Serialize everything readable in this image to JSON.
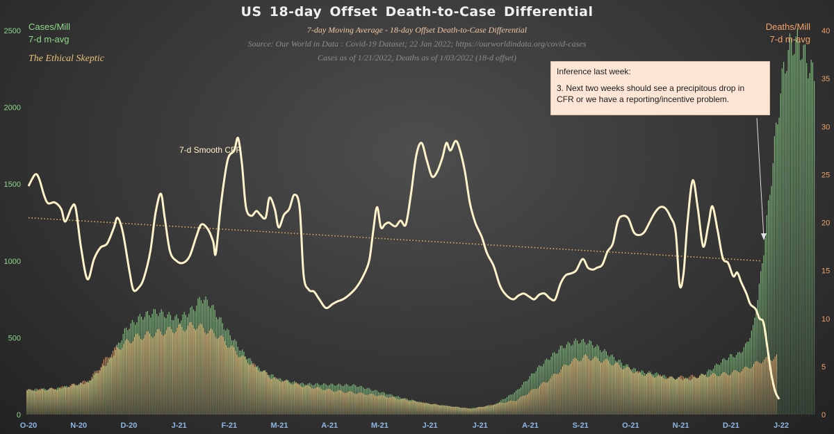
{
  "title": "US 18-day  Offset  Death-to-Case  Differential",
  "subtitle": "7-day Moving Average - 18-day Offset Death-to-Case Differential",
  "source": "Source: Our World in  Data : Covid-19 Dataset; 22  Jan 2022;  https://ourworldindata.org/covid-cases",
  "asof": "Cases as of 1/21/2022,  Deaths as of 1/03/2022  (18-d offset)",
  "left_axis_title": [
    "Cases/Mill",
    "7-d m-avg"
  ],
  "right_axis_title": [
    "Deaths/Mill",
    "7-d m-avg"
  ],
  "brand": "The Ethical Skeptic",
  "annotation": {
    "line1": "Inference last week:",
    "line2": "3.  Next two weeks should see a precipitous drop in CFR or we have a  reporting/incentive problem."
  },
  "colors": {
    "cases": "#8fd98b",
    "deaths": "#f2a36a",
    "cfr": "#fff3c9",
    "trend": "#e9b25c",
    "tick": "#8fb8e8"
  },
  "chart_data": {
    "type": "bar",
    "title": "US 18-day  Offset  Death-to-Case  Differential",
    "x_range": [
      "2020-10-01",
      "2022-01-21"
    ],
    "x_tick_labels": [
      "O-20",
      "N-20",
      "D-20",
      "J-21",
      "F-21",
      "M-21",
      "A-21",
      "M-21",
      "J-21",
      "J-21",
      "A-21",
      "S-21",
      "O-21",
      "N-21",
      "D-21",
      "J-22"
    ],
    "y_left": {
      "label": "Cases/Mill 7-d m-avg",
      "min": 0,
      "max": 2500,
      "ticks": [
        0,
        500,
        1000,
        1500,
        2000,
        2500
      ]
    },
    "y_right": {
      "label": "Deaths/Mill 7-d m-avg",
      "min": 0,
      "max": 40,
      "ticks": [
        0,
        5,
        10,
        15,
        20,
        25,
        30,
        35,
        40
      ]
    },
    "series": [
      {
        "name": "Cases/Mill 7-d m-avg",
        "axis": "left",
        "type": "bar",
        "keypoints": [
          [
            0,
            160
          ],
          [
            20,
            170
          ],
          [
            40,
            210
          ],
          [
            55,
            360
          ],
          [
            65,
            560
          ],
          [
            75,
            640
          ],
          [
            85,
            670
          ],
          [
            100,
            620
          ],
          [
            110,
            700
          ],
          [
            114,
            760
          ],
          [
            120,
            720
          ],
          [
            130,
            560
          ],
          [
            140,
            420
          ],
          [
            150,
            310
          ],
          [
            165,
            230
          ],
          [
            180,
            200
          ],
          [
            200,
            195
          ],
          [
            215,
            190
          ],
          [
            230,
            150
          ],
          [
            245,
            110
          ],
          [
            260,
            75
          ],
          [
            275,
            55
          ],
          [
            290,
            40
          ],
          [
            305,
            60
          ],
          [
            320,
            150
          ],
          [
            335,
            310
          ],
          [
            350,
            440
          ],
          [
            360,
            480
          ],
          [
            368,
            470
          ],
          [
            378,
            410
          ],
          [
            390,
            330
          ],
          [
            400,
            280
          ],
          [
            410,
            270
          ],
          [
            420,
            240
          ],
          [
            435,
            230
          ],
          [
            445,
            275
          ],
          [
            455,
            350
          ],
          [
            460,
            380
          ],
          [
            465,
            390
          ],
          [
            470,
            445
          ],
          [
            475,
            560
          ],
          [
            480,
            900
          ],
          [
            485,
            1350
          ],
          [
            490,
            1850
          ],
          [
            495,
            2250
          ],
          [
            500,
            2420
          ],
          [
            505,
            2420
          ],
          [
            510,
            2300
          ],
          [
            515,
            2200
          ]
        ]
      },
      {
        "name": "Deaths/Mill 7-d m-avg",
        "axis": "right",
        "type": "bar",
        "keypoints": [
          [
            0,
            2.5
          ],
          [
            20,
            2.7
          ],
          [
            40,
            3.5
          ],
          [
            55,
            6.5
          ],
          [
            70,
            8.0
          ],
          [
            85,
            8.5
          ],
          [
            100,
            9.0
          ],
          [
            110,
            9.3
          ],
          [
            125,
            8.2
          ],
          [
            140,
            6.0
          ],
          [
            160,
            3.8
          ],
          [
            180,
            3.0
          ],
          [
            200,
            2.5
          ],
          [
            230,
            2.0
          ],
          [
            260,
            1.2
          ],
          [
            290,
            0.6
          ],
          [
            320,
            1.5
          ],
          [
            340,
            3.5
          ],
          [
            355,
            5.5
          ],
          [
            365,
            6.0
          ],
          [
            380,
            5.5
          ],
          [
            400,
            4.3
          ],
          [
            420,
            3.8
          ],
          [
            440,
            4.0
          ],
          [
            460,
            4.3
          ],
          [
            470,
            4.8
          ],
          [
            480,
            5.6
          ],
          [
            490,
            6.0
          ]
        ]
      },
      {
        "name": "7-d Smooth CFR",
        "axis": "right",
        "type": "line",
        "label": "7-d Smooth CFR",
        "keypoints": [
          [
            0,
            23.8
          ],
          [
            5,
            25.0
          ],
          [
            8,
            24.6
          ],
          [
            12,
            22.8
          ],
          [
            15,
            22.0
          ],
          [
            20,
            22.1
          ],
          [
            25,
            21.4
          ],
          [
            28,
            20.1
          ],
          [
            33,
            21.6
          ],
          [
            36,
            21.5
          ],
          [
            40,
            17.5
          ],
          [
            45,
            14.1
          ],
          [
            50,
            16.2
          ],
          [
            55,
            17.4
          ],
          [
            60,
            17.8
          ],
          [
            65,
            19.4
          ],
          [
            68,
            20.5
          ],
          [
            72,
            19.0
          ],
          [
            77,
            15.0
          ],
          [
            80,
            13.0
          ],
          [
            84,
            13.2
          ],
          [
            88,
            14.2
          ],
          [
            93,
            17.0
          ],
          [
            97,
            21.0
          ],
          [
            101,
            23.0
          ],
          [
            104,
            20.5
          ],
          [
            108,
            17.0
          ],
          [
            113,
            16.0
          ],
          [
            118,
            15.8
          ],
          [
            123,
            16.5
          ],
          [
            128,
            18.5
          ],
          [
            132,
            19.8
          ],
          [
            137,
            19.3
          ],
          [
            141,
            18.0
          ],
          [
            143,
            16.8
          ],
          [
            147,
            22.0
          ],
          [
            152,
            26.5
          ],
          [
            157,
            27.5
          ],
          [
            160,
            28.8
          ],
          [
            163,
            26.0
          ],
          [
            166,
            21.6
          ],
          [
            170,
            20.7
          ],
          [
            174,
            21.2
          ],
          [
            177,
            20.8
          ],
          [
            181,
            20.5
          ],
          [
            184,
            22.6
          ],
          [
            188,
            21.4
          ],
          [
            191,
            19.5
          ],
          [
            195,
            20.8
          ],
          [
            199,
            21.4
          ],
          [
            203,
            22.9
          ],
          [
            207,
            21.5
          ],
          [
            210,
            14.5
          ],
          [
            214,
            13.0
          ],
          [
            218,
            12.8
          ],
          [
            222,
            12.0
          ],
          [
            227,
            11.1
          ],
          [
            232,
            11.5
          ],
          [
            236,
            11.8
          ],
          [
            240,
            12.0
          ],
          [
            245,
            12.5
          ],
          [
            250,
            13.2
          ],
          [
            255,
            14.3
          ],
          [
            260,
            16.0
          ],
          [
            263,
            19.0
          ],
          [
            266,
            21.6
          ],
          [
            269,
            19.5
          ],
          [
            272,
            19.8
          ],
          [
            275,
            20.0
          ],
          [
            280,
            19.6
          ],
          [
            284,
            20.2
          ],
          [
            288,
            19.8
          ],
          [
            292,
            23.0
          ],
          [
            296,
            27.0
          ],
          [
            300,
            28.3
          ],
          [
            304,
            26.5
          ],
          [
            308,
            24.8
          ],
          [
            312,
            25.3
          ],
          [
            316,
            26.8
          ],
          [
            319,
            28.3
          ],
          [
            322,
            27.5
          ],
          [
            326,
            28.5
          ],
          [
            329,
            27.7
          ],
          [
            333,
            25.4
          ],
          [
            337,
            22.0
          ],
          [
            341,
            20.0
          ],
          [
            346,
            18.5
          ],
          [
            350,
            16.8
          ],
          [
            355,
            15.5
          ],
          [
            360,
            13.4
          ],
          [
            365,
            12.4
          ],
          [
            370,
            12.0
          ],
          [
            374,
            12.4
          ],
          [
            378,
            12.6
          ],
          [
            382,
            12.3
          ],
          [
            386,
            12.0
          ],
          [
            390,
            12.5
          ],
          [
            394,
            12.6
          ],
          [
            398,
            12.1
          ],
          [
            402,
            12.0
          ],
          [
            406,
            13.6
          ],
          [
            410,
            14.5
          ],
          [
            414,
            14.7
          ],
          [
            418,
            15.0
          ],
          [
            423,
            16.2
          ],
          [
            427,
            15.3
          ],
          [
            431,
            15.1
          ],
          [
            434,
            15.3
          ],
          [
            438,
            15.6
          ],
          [
            442,
            17.0
          ],
          [
            446,
            17.8
          ],
          [
            450,
            20.2
          ],
          [
            454,
            20.7
          ],
          [
            458,
            20.4
          ],
          [
            462,
            19.0
          ],
          [
            466,
            18.7
          ],
          [
            470,
            19.0
          ],
          [
            474,
            20.0
          ],
          [
            478,
            21.0
          ],
          [
            482,
            21.6
          ],
          [
            486,
            21.5
          ],
          [
            490,
            20.6
          ],
          [
            494,
            19.0
          ],
          [
            497,
            13.5
          ],
          [
            500,
            14.7
          ],
          [
            503,
            20.0
          ],
          [
            507,
            24.4
          ],
          [
            511,
            21.4
          ],
          [
            515,
            17.5
          ],
          [
            519,
            19.8
          ],
          [
            522,
            21.7
          ],
          [
            526,
            19.2
          ],
          [
            530,
            16.3
          ],
          [
            534,
            15.8
          ],
          [
            538,
            14.4
          ],
          [
            541,
            14.8
          ],
          [
            544,
            13.8
          ],
          [
            548,
            12.6
          ],
          [
            551,
            11.5
          ],
          [
            555,
            11.0
          ],
          [
            558,
            10.0
          ],
          [
            561,
            9.6
          ],
          [
            564,
            7.0
          ],
          [
            567,
            4.2
          ],
          [
            570,
            2.4
          ],
          [
            573,
            1.6
          ]
        ]
      },
      {
        "name": "CFR linear trend",
        "axis": "right",
        "type": "line",
        "style": "dotted",
        "keypoints": [
          [
            0,
            20.5
          ],
          [
            560,
            16.0
          ]
        ]
      }
    ],
    "annotations": [
      "Inference last week:",
      "3.  Next two weeks should see a precipitous drop in CFR or we have a  reporting/incentive problem."
    ]
  }
}
